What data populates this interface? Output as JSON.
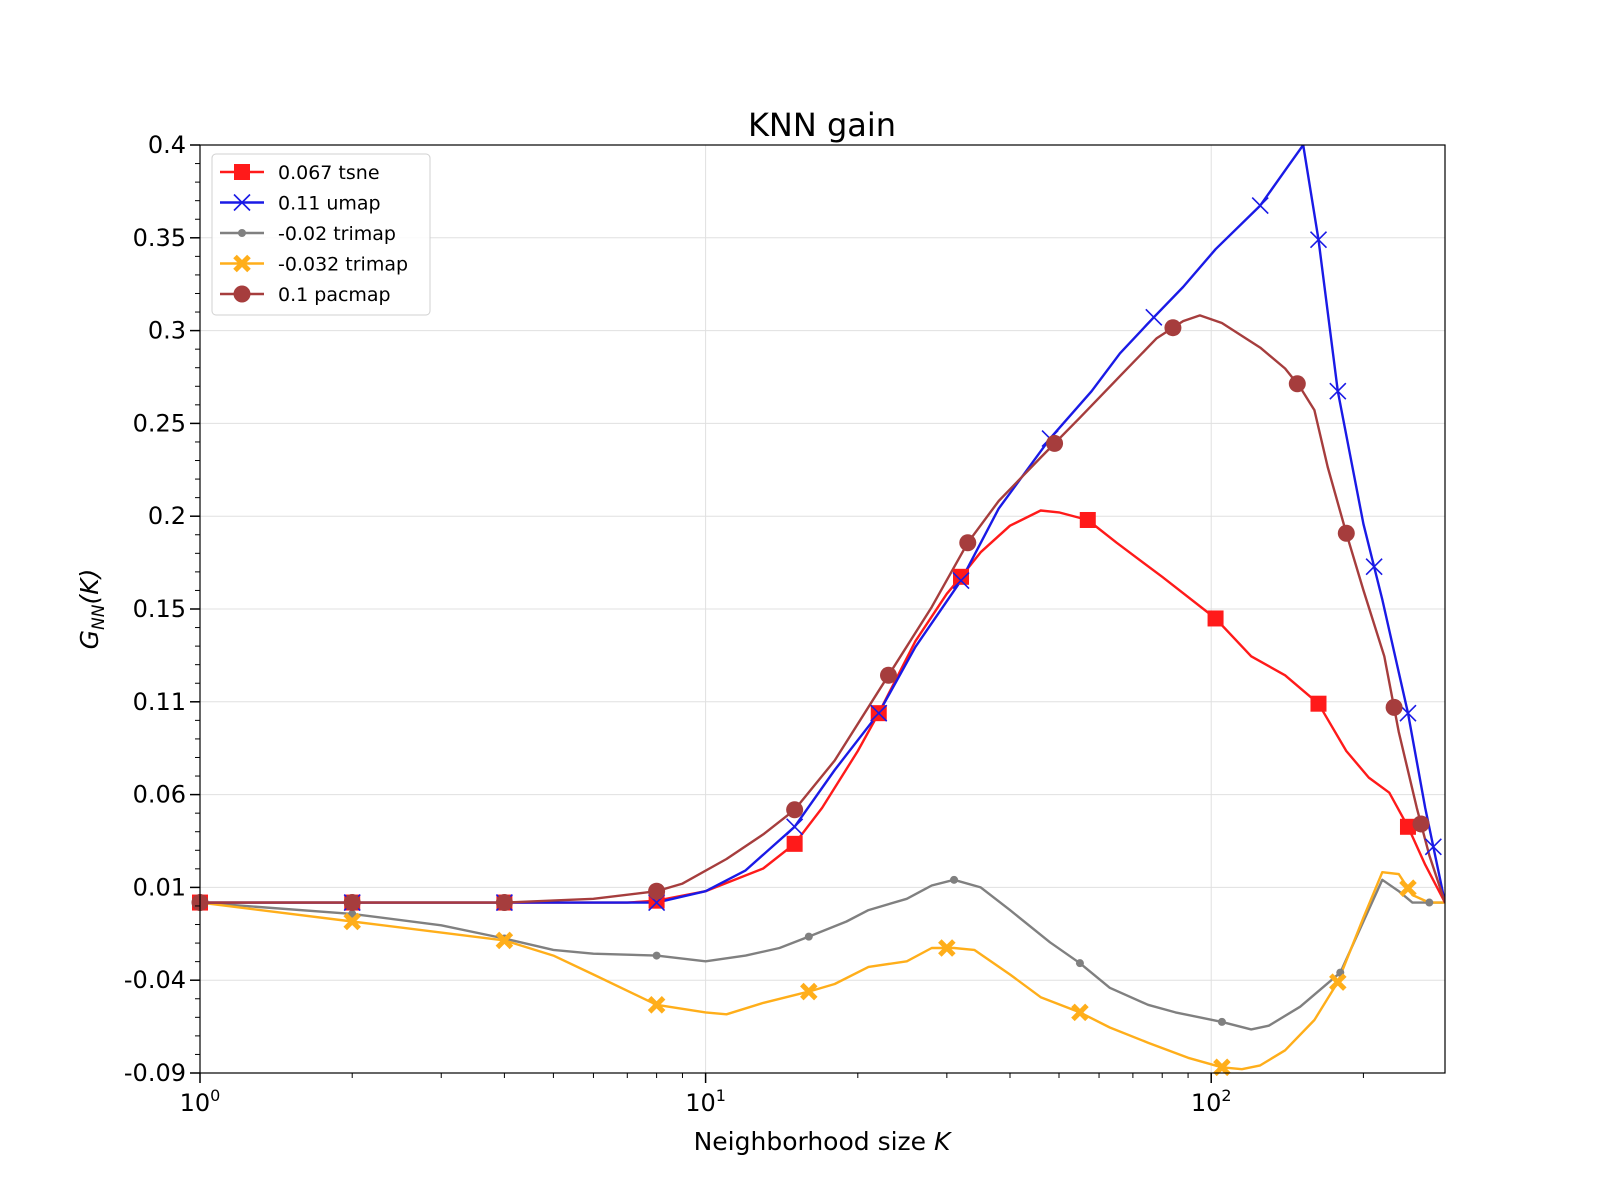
{
  "chart_data": {
    "type": "line",
    "title": "KNN gain",
    "xlabel": "Neighborhood size",
    "xlabel_var": "K",
    "ylabel": {
      "main": "G",
      "sub": "NN",
      "arg": "(K)"
    },
    "xscale": "log",
    "xlim": [
      1,
      290
    ],
    "ylim": [
      -0.09,
      0.4
    ],
    "grid": true,
    "legend_position": "top-left",
    "x_ticks": [
      {
        "value": 1,
        "base": "10",
        "exp": "0"
      },
      {
        "value": 10,
        "base": "10",
        "exp": "1"
      },
      {
        "value": 100,
        "base": "10",
        "exp": "2"
      }
    ],
    "y_ticks": [
      {
        "value": 0.4,
        "label": "0.4"
      },
      {
        "value": 0.351,
        "label": "0.35"
      },
      {
        "value": 0.302,
        "label": "0.3"
      },
      {
        "value": 0.253,
        "label": "0.25"
      },
      {
        "value": 0.204,
        "label": "0.2"
      },
      {
        "value": 0.155,
        "label": "0.15"
      },
      {
        "value": 0.106,
        "label": "0.11"
      },
      {
        "value": 0.057,
        "label": "0.06"
      },
      {
        "value": 0.008,
        "label": "0.01"
      },
      {
        "value": -0.041,
        "label": "-0.04"
      },
      {
        "value": -0.09,
        "label": "-0.09"
      }
    ],
    "series": [
      {
        "name": "0.067 tsne",
        "color": "#ff1a1a",
        "marker": "square",
        "x": [
          1,
          2,
          4,
          7,
          8,
          10,
          13,
          15,
          17,
          20,
          22,
          26,
          30,
          32,
          35,
          40,
          46,
          50,
          57,
          65,
          80,
          102,
          120,
          140,
          163,
          185,
          205,
          225,
          245,
          265,
          290
        ],
        "y": [
          0,
          0,
          0,
          0,
          0.001,
          0.006,
          0.018,
          0.031,
          0.05,
          0.08,
          0.1,
          0.138,
          0.163,
          0.172,
          0.185,
          0.199,
          0.207,
          0.206,
          0.202,
          0.19,
          0.172,
          0.15,
          0.13,
          0.12,
          0.105,
          0.08,
          0.066,
          0.058,
          0.04,
          0.02,
          0
        ],
        "marker_x": [
          1,
          2,
          4,
          8,
          15,
          22,
          32,
          57,
          102,
          163,
          245
        ]
      },
      {
        "name": "0.11 umap",
        "color": "#1a1ae6",
        "marker": "x",
        "x": [
          1,
          2,
          4,
          8,
          10,
          12,
          15,
          18,
          22,
          26,
          32,
          38,
          48,
          58,
          66,
          77,
          88,
          102,
          125,
          143,
          152,
          163,
          178,
          200,
          218,
          245,
          265,
          290
        ],
        "y": [
          0,
          0,
          0,
          0,
          0.006,
          0.017,
          0.04,
          0.07,
          0.1,
          0.135,
          0.17,
          0.208,
          0.245,
          0.27,
          0.29,
          0.309,
          0.325,
          0.345,
          0.368,
          0.39,
          0.4,
          0.35,
          0.27,
          0.2,
          0.16,
          0.1,
          0.05,
          0
        ],
        "marker_x": [
          2,
          4,
          8,
          15,
          22,
          32,
          48,
          77,
          125,
          163,
          178,
          210,
          245,
          275
        ]
      },
      {
        "name": "-0.02 trimap",
        "color": "#808080",
        "marker": "dot",
        "x": [
          1,
          2,
          3,
          4,
          5,
          6,
          8,
          10,
          12,
          14,
          16,
          19,
          21,
          25,
          28,
          31,
          35,
          40,
          48,
          55,
          63,
          75,
          85,
          105,
          120,
          130,
          150,
          180,
          200,
          218,
          235,
          250,
          270,
          290
        ],
        "y": [
          0,
          -0.006,
          -0.012,
          -0.019,
          -0.025,
          -0.027,
          -0.028,
          -0.031,
          -0.028,
          -0.024,
          -0.018,
          -0.01,
          -0.004,
          0.002,
          0.009,
          0.012,
          0.008,
          -0.004,
          -0.021,
          -0.032,
          -0.045,
          -0.054,
          -0.058,
          -0.063,
          -0.067,
          -0.065,
          -0.055,
          -0.037,
          -0.01,
          0.012,
          0.006,
          0,
          0,
          0
        ],
        "marker_x": [
          2,
          4,
          8,
          16,
          31,
          55,
          105,
          180,
          270
        ]
      },
      {
        "name": "-0.032 trimap",
        "color": "#ffae1a",
        "marker": "xbold",
        "x": [
          1,
          2,
          4,
          5,
          6,
          8,
          10,
          11,
          13,
          16,
          18,
          21,
          25,
          28,
          31,
          34,
          40,
          46,
          55,
          63,
          75,
          90,
          105,
          115,
          125,
          140,
          160,
          178,
          200,
          218,
          235,
          250,
          270,
          290
        ],
        "y": [
          0,
          -0.01,
          -0.02,
          -0.028,
          -0.038,
          -0.054,
          -0.058,
          -0.059,
          -0.053,
          -0.047,
          -0.043,
          -0.034,
          -0.031,
          -0.024,
          -0.024,
          -0.025,
          -0.038,
          -0.05,
          -0.058,
          -0.066,
          -0.074,
          -0.082,
          -0.087,
          -0.088,
          -0.086,
          -0.078,
          -0.062,
          -0.042,
          -0.008,
          0.016,
          0.015,
          0.004,
          0,
          0
        ],
        "marker_x": [
          2,
          4,
          8,
          16,
          30,
          55,
          105,
          178,
          245
        ]
      },
      {
        "name": "0.1 pacmap",
        "color": "#a63d3d",
        "marker": "circle",
        "x": [
          1,
          2,
          4,
          6,
          8,
          9,
          11,
          13,
          15,
          18,
          23,
          28,
          33,
          38,
          46,
          55,
          66,
          78,
          88,
          95,
          105,
          125,
          140,
          150,
          160,
          170,
          185,
          200,
          220,
          235,
          255,
          270,
          290
        ],
        "y": [
          0,
          0,
          0,
          0.002,
          0.006,
          0.01,
          0.023,
          0.036,
          0.049,
          0.075,
          0.12,
          0.156,
          0.19,
          0.212,
          0.235,
          0.256,
          0.278,
          0.298,
          0.307,
          0.31,
          0.306,
          0.293,
          0.282,
          0.272,
          0.26,
          0.23,
          0.195,
          0.165,
          0.13,
          0.09,
          0.05,
          0.025,
          0
        ],
        "marker_x": [
          1,
          2,
          4,
          8,
          15,
          23,
          33,
          49,
          84,
          148,
          185,
          230,
          260
        ]
      }
    ]
  }
}
